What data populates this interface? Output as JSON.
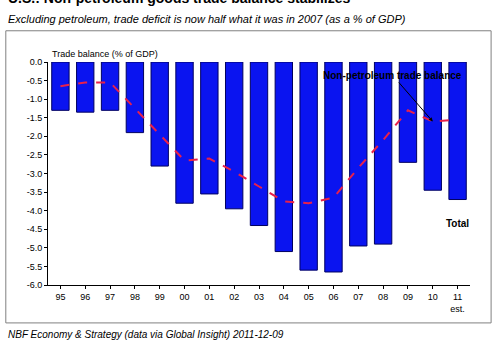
{
  "chart_data": {
    "type": "bar",
    "title": "U.S.: Non-petroleum goods trade balance stabilizes",
    "subtitle": "Excluding petroleum, trade deficit is now half what it was in 2007 (as a % of GDP)",
    "y_label": "Trade balance (% of GDP)",
    "source": "NBF Economy & Strategy (data via Global Insight) 2011-12-09",
    "categories": [
      "95",
      "96",
      "97",
      "98",
      "99",
      "00",
      "01",
      "02",
      "03",
      "04",
      "05",
      "06",
      "07",
      "08",
      "09",
      "10",
      "11\nest."
    ],
    "series": [
      {
        "name": "Total",
        "type": "bar",
        "color": "#0a14f0",
        "values": [
          -1.3,
          -1.35,
          -1.3,
          -1.9,
          -2.8,
          -3.8,
          -3.55,
          -3.95,
          -4.4,
          -5.1,
          -5.6,
          -5.65,
          -4.95,
          -4.9,
          -2.7,
          -3.45,
          -3.7
        ]
      },
      {
        "name": "Non-petroleum trade balance",
        "type": "line",
        "color": "#e8204a",
        "line_style": "dashed",
        "values": [
          -0.65,
          -0.55,
          -0.55,
          -1.25,
          -1.95,
          -2.65,
          -2.6,
          -2.95,
          -3.35,
          -3.75,
          -3.8,
          -3.65,
          -2.85,
          -2.1,
          -1.3,
          -1.6,
          -1.55
        ]
      }
    ],
    "ylim": [
      -6.0,
      0.0
    ],
    "yticks": [
      {
        "value": -6.0,
        "label": "-6.0"
      },
      {
        "value": -5.5,
        "label": "-5.5"
      },
      {
        "value": -5.0,
        "label": "-5.0"
      },
      {
        "value": -4.5,
        "label": "-4.5"
      },
      {
        "value": -4.0,
        "label": "-4.0"
      },
      {
        "value": -3.5,
        "label": "-3.5"
      },
      {
        "value": -3.0,
        "label": "-3.0"
      },
      {
        "value": -2.5,
        "label": "-2.5"
      },
      {
        "value": -2.0,
        "label": "-2.0"
      },
      {
        "value": -1.5,
        "label": "-1.5"
      },
      {
        "value": -1.0,
        "label": "-1.0"
      },
      {
        "value": -0.5,
        "label": "-0.5"
      },
      {
        "value": 0.0,
        "label": "0.0"
      }
    ],
    "grid": false
  }
}
